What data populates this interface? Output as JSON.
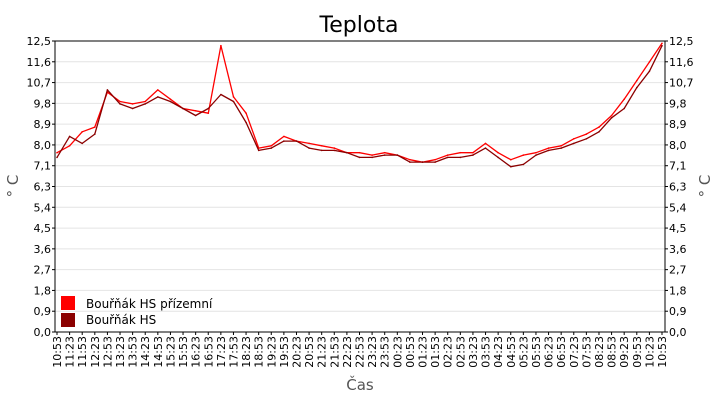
{
  "chart_data": {
    "type": "line",
    "title": "Teplota",
    "xlabel": "Čas",
    "ylabel": "° C",
    "ylim": [
      0,
      12.5
    ],
    "yticks": [
      "0,0",
      "0,9",
      "1,8",
      "2,7",
      "3,6",
      "4,5",
      "5,4",
      "6,3",
      "7,1",
      "8,0",
      "8,9",
      "9,8",
      "10,7",
      "11,6",
      "12,5"
    ],
    "x": [
      "10:53",
      "11:23",
      "11:53",
      "12:23",
      "12:53",
      "13:23",
      "13:53",
      "14:23",
      "14:53",
      "15:23",
      "15:53",
      "16:23",
      "16:53",
      "17:23",
      "17:53",
      "18:23",
      "18:53",
      "19:23",
      "19:53",
      "20:23",
      "20:53",
      "21:23",
      "21:53",
      "22:23",
      "22:53",
      "23:23",
      "23:53",
      "00:23",
      "00:53",
      "01:23",
      "01:53",
      "02:23",
      "02:53",
      "03:23",
      "03:53",
      "04:23",
      "04:53",
      "05:23",
      "05:53",
      "06:23",
      "06:53",
      "07:23",
      "07:53",
      "08:23",
      "08:53",
      "09:23",
      "09:53",
      "10:23",
      "10:53"
    ],
    "grid": true,
    "legend_position": "bottom-left",
    "series": [
      {
        "name": "Bouřňák HS přízemní",
        "color": "#ff0000",
        "values": [
          7.7,
          8.0,
          8.6,
          8.8,
          10.3,
          9.9,
          9.8,
          9.9,
          10.4,
          10.0,
          9.6,
          9.5,
          9.4,
          12.3,
          10.1,
          9.4,
          7.9,
          8.0,
          8.4,
          8.2,
          8.1,
          8.0,
          7.9,
          7.7,
          7.7,
          7.6,
          7.7,
          7.6,
          7.4,
          7.3,
          7.4,
          7.6,
          7.7,
          7.7,
          8.1,
          7.7,
          7.4,
          7.6,
          7.7,
          7.9,
          8.0,
          8.3,
          8.5,
          8.8,
          9.3,
          10.0,
          10.8,
          11.6,
          12.4
        ]
      },
      {
        "name": "Bouřňák HS",
        "color": "#8b0000",
        "values": [
          7.5,
          8.4,
          8.1,
          8.5,
          10.4,
          9.8,
          9.6,
          9.8,
          10.1,
          9.9,
          9.6,
          9.3,
          9.6,
          10.2,
          9.9,
          9.0,
          7.8,
          7.9,
          8.2,
          8.2,
          7.9,
          7.8,
          7.8,
          7.7,
          7.5,
          7.5,
          7.6,
          7.6,
          7.3,
          7.3,
          7.3,
          7.5,
          7.5,
          7.6,
          7.9,
          7.5,
          7.1,
          7.2,
          7.6,
          7.8,
          7.9,
          8.1,
          8.3,
          8.6,
          9.2,
          9.6,
          10.5,
          11.2,
          12.3
        ]
      }
    ]
  }
}
